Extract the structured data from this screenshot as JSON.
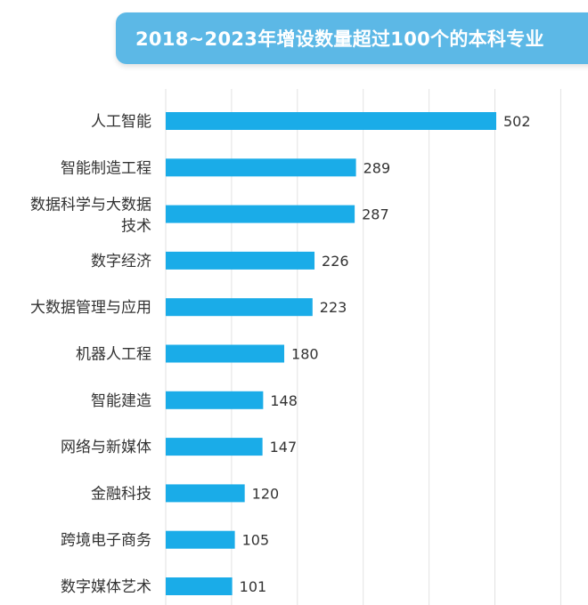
{
  "chart_data": {
    "type": "bar",
    "orientation": "horizontal",
    "title": "2018~2023年增设数量超过100个的本科专业",
    "categories": [
      [
        "人工智能"
      ],
      [
        "智能制造工程"
      ],
      [
        "数据科学与大数据",
        "技术"
      ],
      [
        "数字经济"
      ],
      [
        "大数据管理与应用"
      ],
      [
        "机器人工程"
      ],
      [
        "智能建造"
      ],
      [
        "网络与新媒体"
      ],
      [
        "金融科技"
      ],
      [
        "跨境电子商务"
      ],
      [
        "数字媒体艺术"
      ]
    ],
    "values": [
      502,
      289,
      287,
      226,
      223,
      180,
      148,
      147,
      120,
      105,
      101
    ],
    "xlim": [
      0,
      600
    ],
    "grid": true,
    "bar_color": "#1aace8",
    "banner_color": "#5cb8e6"
  }
}
